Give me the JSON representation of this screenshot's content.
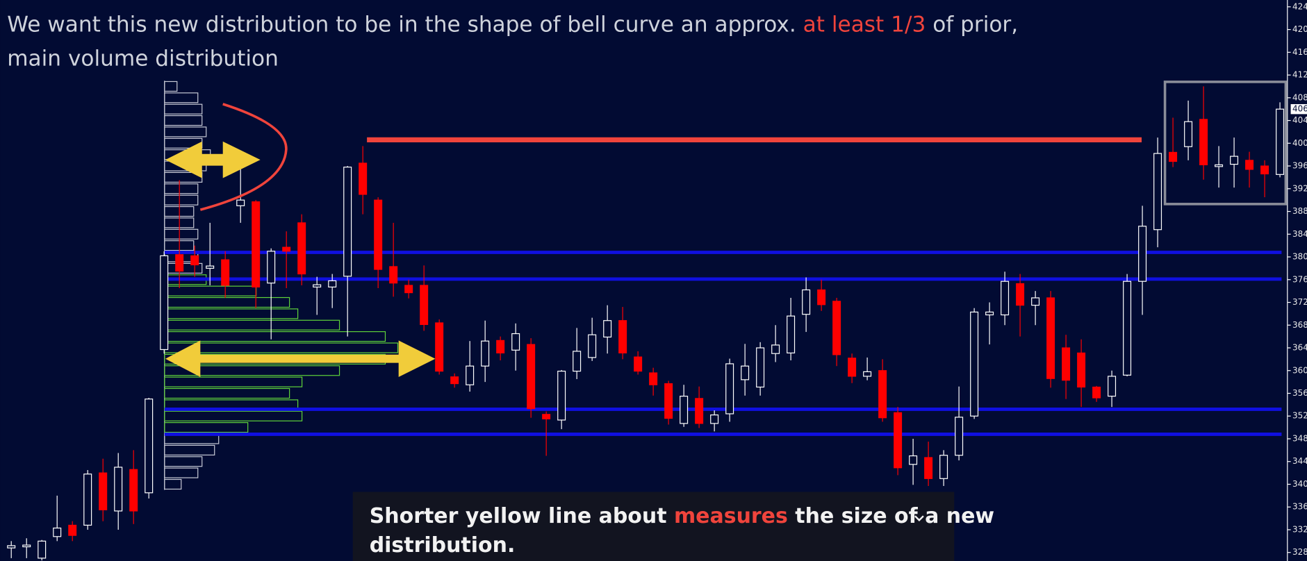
{
  "title": {
    "before": "We want this new distribution to be in the shape of bell curve an approx. ",
    "highlight": "at least 1/3",
    "after": " of prior,",
    "line2": "main volume distribution"
  },
  "caption": {
    "before": "Shorter yellow line about ",
    "highlight": "measures",
    "after": " the size of a new",
    "line2": "distribution."
  },
  "chart_data": {
    "type": "candlestick",
    "open": [
      328.8,
      329,
      327,
      330.8,
      332.8,
      332.8,
      342,
      335.3,
      342.6,
      338.5,
      363.7,
      380.4,
      380.2,
      378,
      379.5,
      389,
      389.7,
      375.4,
      381.7,
      386,
      374.7,
      374.7,
      376.6,
      396.5,
      390,
      378.3,
      375,
      375,
      368.4,
      358.9,
      357.5,
      360.8,
      365.3,
      363.6,
      364.6,
      352.3,
      351.3,
      359.9,
      362.3,
      365.9,
      368.8,
      362.4,
      359.6,
      357.7,
      350.7,
      355.1,
      350.7,
      352.4,
      358.4,
      357.1,
      363,
      363.1,
      369.9,
      374.2,
      372.2,
      362.2,
      359,
      360,
      352.6,
      343.5,
      344.7,
      341,
      345.1,
      352,
      369.8,
      369.8,
      375.3,
      371.5,
      372.8,
      364,
      363.1,
      357.1,
      355.5,
      359.2,
      375.7,
      384.8,
      398.4,
      399.4,
      404.2,
      395.9,
      396.3,
      397,
      396,
      394.5
    ],
    "high": [
      330,
      330.5,
      330.2,
      338,
      333.5,
      342.5,
      344.5,
      345.5,
      346,
      355.2,
      381,
      393.5,
      382,
      386,
      381,
      396,
      390,
      381.5,
      384.5,
      387.5,
      376.5,
      377,
      396,
      399.5,
      390.5,
      386,
      376,
      378.5,
      369,
      359.5,
      365.2,
      368.8,
      366,
      368.3,
      365.7,
      352.8,
      360.1,
      367.5,
      369.3,
      371.5,
      371.2,
      363.4,
      360.5,
      358.2,
      357.5,
      357.2,
      353,
      362.1,
      364.7,
      365,
      368,
      372.8,
      376.4,
      376,
      372.8,
      363,
      362.3,
      362,
      353.6,
      348,
      347.5,
      346,
      357.2,
      371,
      372,
      377.4,
      377,
      374,
      374,
      366.3,
      365.5,
      357.3,
      360,
      377,
      389,
      401,
      404.5,
      407.5,
      410,
      399.5,
      401,
      398.5,
      397,
      407.2
    ],
    "low": [
      327,
      327,
      326.6,
      330,
      330,
      332,
      333.5,
      332,
      333,
      337.5,
      363,
      374.5,
      376.5,
      375,
      372.8,
      386,
      371,
      365.5,
      374.5,
      375,
      369.8,
      371,
      366,
      387.5,
      374.5,
      373,
      372.7,
      367,
      359.3,
      357,
      356.3,
      358,
      361.8,
      360,
      351.7,
      345,
      349.7,
      358.5,
      361.7,
      363,
      362,
      359.3,
      355.6,
      350.5,
      350.1,
      349.9,
      349.3,
      351,
      355.6,
      355.6,
      361.5,
      361.8,
      366.8,
      370.5,
      360.8,
      357.8,
      358.3,
      351,
      341.6,
      339.9,
      339.7,
      339.7,
      344.2,
      351.5,
      364.6,
      368,
      366,
      368,
      357,
      355,
      353.6,
      354.5,
      353.6,
      359,
      369.8,
      381.7,
      395.8,
      397,
      393.6,
      392.2,
      392.2,
      392.2,
      390.5,
      394
    ],
    "close": [
      329.2,
      329.3,
      330,
      332.3,
      331,
      341.8,
      335.5,
      343,
      335.3,
      355,
      380.2,
      377.5,
      378.6,
      378.4,
      375,
      390,
      374.7,
      381,
      381,
      377,
      375.1,
      375.8,
      395.8,
      391,
      377.8,
      375.4,
      373.7,
      368.1,
      359.9,
      357.7,
      360.8,
      365.2,
      363.1,
      366.5,
      353.3,
      351.5,
      359.9,
      363.4,
      366.3,
      368.8,
      363.1,
      359.9,
      357.5,
      351.6,
      355.5,
      350.7,
      352.2,
      361.2,
      360.8,
      364,
      364.5,
      369.6,
      374.2,
      371.6,
      362.8,
      359,
      359.8,
      351.7,
      342.9,
      345,
      341,
      345.1,
      351.8,
      370.3,
      370.3,
      375.7,
      371.5,
      372.8,
      358.6,
      358.3,
      357.1,
      355.2,
      359,
      375.7,
      385.4,
      398.2,
      396.8,
      403.8,
      396.2,
      396.2,
      397.7,
      395.4,
      394.6,
      406
    ],
    "up_color": "#ffffff",
    "down_color": "#ff0000",
    "ylim": [
      326.5,
      425.2
    ],
    "yticks": [
      424,
      420,
      416,
      412,
      408,
      404,
      400,
      396,
      392,
      388,
      384,
      380,
      376,
      372,
      368,
      364,
      360,
      356,
      352,
      348,
      344,
      340,
      336,
      332,
      328
    ],
    "last_price": 406,
    "profile": {
      "levels": [
        410,
        408,
        406,
        404,
        402,
        400,
        398,
        396,
        394,
        392,
        390,
        388,
        386,
        384,
        382,
        380,
        378,
        376,
        374,
        372,
        370,
        368,
        366,
        364,
        362,
        360,
        358,
        356,
        354,
        352,
        350,
        348,
        346,
        344,
        342,
        340
      ],
      "volumes": [
        15,
        40,
        45,
        45,
        50,
        45,
        55,
        50,
        45,
        40,
        40,
        35,
        35,
        40,
        35,
        40,
        45,
        50,
        110,
        150,
        160,
        210,
        265,
        280,
        265,
        210,
        165,
        150,
        160,
        165,
        100,
        65,
        60,
        45,
        40,
        20
      ],
      "colors": [
        "#c8cad6",
        "#c8cad6",
        "#c8cad6",
        "#c8cad6",
        "#c8cad6",
        "#c8cad6",
        "#c8cad6",
        "#c8cad6",
        "#c8cad6",
        "#c8cad6",
        "#c8cad6",
        "#c8cad6",
        "#c8cad6",
        "#c8cad6",
        "#c8cad6",
        "#c8cad6",
        "#c8cad6",
        "#5fd33a",
        "#5fd33a",
        "#5fd33a",
        "#5fd33a",
        "#5fd33a",
        "#5fd33a",
        "#5fd33a",
        "#5fd33a",
        "#5fd33a",
        "#5fd33a",
        "#5fd33a",
        "#5fd33a",
        "#5fd33a",
        "#5fd33a",
        "#c8cad6",
        "#c8cad6",
        "#c8cad6",
        "#c8cad6",
        "#c8cad6"
      ]
    },
    "hlines": {
      "values": [
        380.8,
        376.1,
        353.2,
        348.8
      ],
      "color": "#1010e0"
    },
    "resistance": {
      "value": 400.6,
      "color": "#f0443c"
    },
    "box": {
      "top": 410.8,
      "bottom": 389.3,
      "color": "#8a8d99"
    }
  }
}
